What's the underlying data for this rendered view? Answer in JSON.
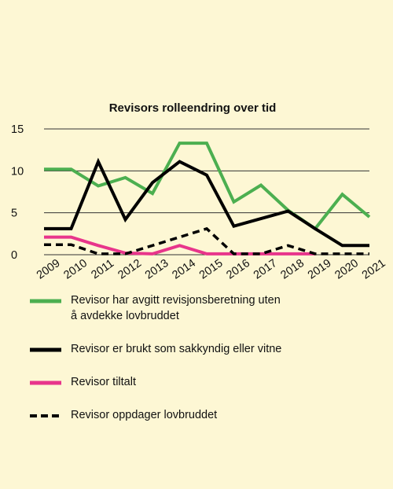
{
  "chart_data": {
    "type": "line",
    "title": "Revisors rolleendring over tid",
    "categories": [
      "2009",
      "2010",
      "2011",
      "2012",
      "2013",
      "2014",
      "2015",
      "2016",
      "2017",
      "2018",
      "2019",
      "2020",
      "2021"
    ],
    "ylim": [
      0,
      15
    ],
    "yticks": [
      0,
      5,
      10,
      15
    ],
    "grid": "horizontal",
    "legend_position": "bottom",
    "series": [
      {
        "name": "Revisor har avgitt revisjonsberetning uten å avdekke lovbruddet",
        "color": "#4caf50",
        "style": "solid",
        "values": [
          10.2,
          10.2,
          8.2,
          9.2,
          7.3,
          13.3,
          13.3,
          6.3,
          8.3,
          5.3,
          3.1,
          7.2,
          4.5
        ]
      },
      {
        "name": "Revisor er brukt som sakkyndig eller vitne",
        "color": "#000000",
        "style": "solid",
        "values": [
          3.1,
          3.1,
          11.1,
          4.2,
          8.6,
          11.1,
          9.5,
          3.4,
          4.3,
          5.2,
          3.1,
          1.1,
          1.1
        ]
      },
      {
        "name": "Revisor tiltalt",
        "color": "#e8358b",
        "style": "solid",
        "values": [
          2.1,
          2.1,
          1.1,
          0.2,
          0.1,
          1.1,
          0.1,
          0.1,
          0.1,
          0.1,
          0.1,
          null,
          null
        ]
      },
      {
        "name": "Revisor oppdager lovbruddet",
        "color": "#000000",
        "style": "dashed",
        "values": [
          1.2,
          1.2,
          0.1,
          0.1,
          1.1,
          2.1,
          3.1,
          0.1,
          0.1,
          1.1,
          0.1,
          0.1,
          0.1
        ]
      }
    ]
  },
  "legend": [
    {
      "label": "Revisor har avgitt revisjonsberetning uten\nå avdekke lovbruddet"
    },
    {
      "label": "Revisor er brukt som sakkyndig eller vitne"
    },
    {
      "label": "Revisor tiltalt"
    },
    {
      "label": "Revisor oppdager lovbruddet"
    }
  ]
}
